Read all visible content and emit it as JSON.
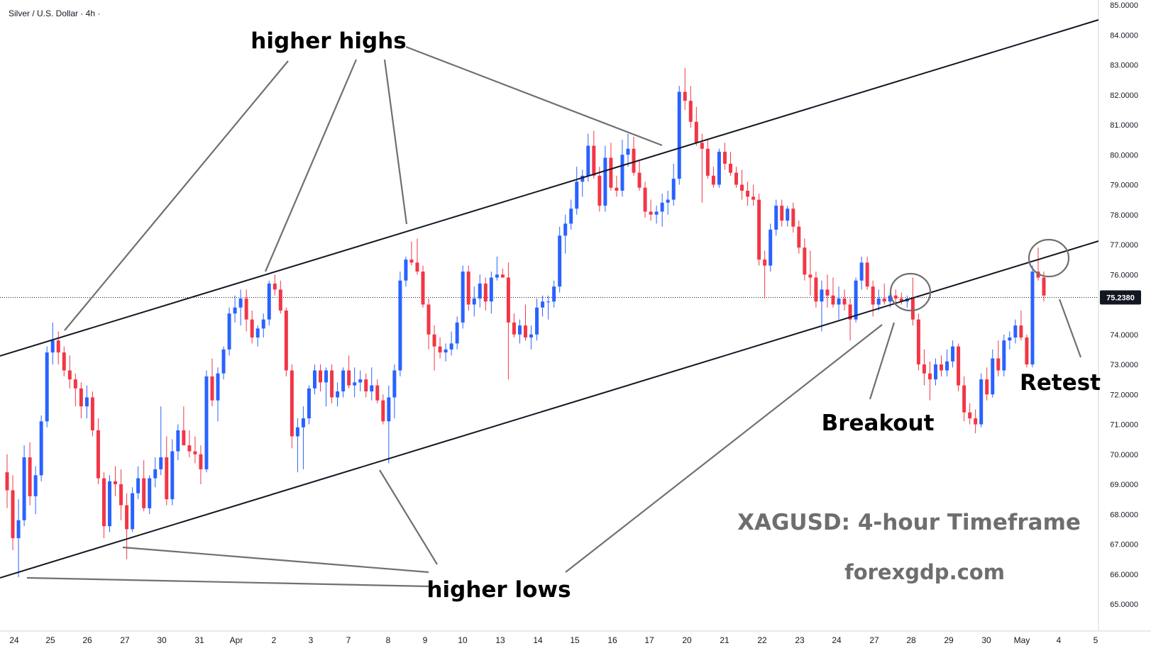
{
  "symbol_title": "Silver / U.S. Dollar · 4h ·",
  "chart_data": {
    "type": "candlestick",
    "title": "XAGUSD: 4-hour Timeframe",
    "watermark": "forexgdp.com",
    "symbol": "Silver / U.S. Dollar",
    "timeframe": "4h",
    "ylim": [
      64.5,
      85.0
    ],
    "y_ticks": [
      "65.0000",
      "66.0000",
      "67.0000",
      "68.0000",
      "69.0000",
      "70.0000",
      "71.0000",
      "72.0000",
      "73.0000",
      "74.0000",
      "75.0000",
      "76.0000",
      "77.0000",
      "78.0000",
      "79.0000",
      "80.0000",
      "81.0000",
      "82.0000",
      "83.0000",
      "84.0000",
      "85.0000"
    ],
    "x_ticks": [
      "24",
      "25",
      "26",
      "27",
      "30",
      "31",
      "Apr",
      "2",
      "3",
      "7",
      "8",
      "9",
      "10",
      "13",
      "14",
      "15",
      "16",
      "17",
      "20",
      "21",
      "22",
      "23",
      "24",
      "27",
      "28",
      "29",
      "30",
      "May",
      "4",
      "5"
    ],
    "current_price": "75.2380",
    "colors": {
      "up": "#2962ff",
      "down": "#f23645",
      "trendline": "#131722",
      "annotation_line": "#707070",
      "price_badge": "#131722"
    },
    "candles": [
      {
        "o": 69.4,
        "h": 70.0,
        "l": 68.2,
        "c": 68.8
      },
      {
        "o": 68.8,
        "h": 69.3,
        "l": 66.8,
        "c": 67.2
      },
      {
        "o": 67.2,
        "h": 68.5,
        "l": 65.9,
        "c": 67.8
      },
      {
        "o": 67.8,
        "h": 70.3,
        "l": 67.6,
        "c": 69.9
      },
      {
        "o": 69.9,
        "h": 70.4,
        "l": 68.3,
        "c": 68.6
      },
      {
        "o": 68.6,
        "h": 69.6,
        "l": 68.0,
        "c": 69.3
      },
      {
        "o": 69.3,
        "h": 71.3,
        "l": 69.1,
        "c": 71.1
      },
      {
        "o": 71.1,
        "h": 73.6,
        "l": 70.9,
        "c": 73.4
      },
      {
        "o": 73.4,
        "h": 74.4,
        "l": 73.0,
        "c": 73.8
      },
      {
        "o": 73.8,
        "h": 74.1,
        "l": 73.0,
        "c": 73.4
      },
      {
        "o": 73.4,
        "h": 73.6,
        "l": 72.6,
        "c": 72.8
      },
      {
        "o": 72.8,
        "h": 73.3,
        "l": 72.2,
        "c": 72.5
      },
      {
        "o": 72.5,
        "h": 72.7,
        "l": 71.6,
        "c": 72.2
      },
      {
        "o": 72.2,
        "h": 72.4,
        "l": 71.2,
        "c": 71.6
      },
      {
        "o": 71.6,
        "h": 72.3,
        "l": 71.2,
        "c": 71.9
      },
      {
        "o": 71.9,
        "h": 72.1,
        "l": 70.6,
        "c": 70.8
      },
      {
        "o": 70.8,
        "h": 71.2,
        "l": 69.0,
        "c": 69.2
      },
      {
        "o": 69.2,
        "h": 69.4,
        "l": 67.2,
        "c": 67.6
      },
      {
        "o": 67.6,
        "h": 69.3,
        "l": 67.4,
        "c": 69.1
      },
      {
        "o": 69.1,
        "h": 69.6,
        "l": 68.6,
        "c": 69.0
      },
      {
        "o": 69.0,
        "h": 69.5,
        "l": 67.8,
        "c": 68.3
      },
      {
        "o": 68.3,
        "h": 68.7,
        "l": 66.5,
        "c": 67.5
      },
      {
        "o": 67.5,
        "h": 68.9,
        "l": 67.4,
        "c": 68.7
      },
      {
        "o": 68.7,
        "h": 69.6,
        "l": 68.5,
        "c": 69.2
      },
      {
        "o": 69.2,
        "h": 69.8,
        "l": 68.1,
        "c": 68.2
      },
      {
        "o": 68.2,
        "h": 69.3,
        "l": 68.0,
        "c": 69.2
      },
      {
        "o": 69.2,
        "h": 69.9,
        "l": 68.9,
        "c": 69.5
      },
      {
        "o": 69.5,
        "h": 71.6,
        "l": 69.3,
        "c": 69.9
      },
      {
        "o": 69.9,
        "h": 70.6,
        "l": 68.3,
        "c": 68.5
      },
      {
        "o": 68.5,
        "h": 70.5,
        "l": 68.3,
        "c": 70.1
      },
      {
        "o": 70.1,
        "h": 71.0,
        "l": 69.8,
        "c": 70.8
      },
      {
        "o": 70.8,
        "h": 71.6,
        "l": 70.3,
        "c": 70.3
      },
      {
        "o": 70.3,
        "h": 70.8,
        "l": 69.9,
        "c": 70.1
      },
      {
        "o": 70.1,
        "h": 70.6,
        "l": 69.7,
        "c": 70.0
      },
      {
        "o": 70.0,
        "h": 70.3,
        "l": 69.0,
        "c": 69.5
      },
      {
        "o": 69.5,
        "h": 72.8,
        "l": 69.4,
        "c": 72.6
      },
      {
        "o": 72.6,
        "h": 73.2,
        "l": 71.6,
        "c": 71.8
      },
      {
        "o": 71.8,
        "h": 72.9,
        "l": 71.1,
        "c": 72.7
      },
      {
        "o": 72.7,
        "h": 73.6,
        "l": 72.5,
        "c": 73.5
      },
      {
        "o": 73.5,
        "h": 74.9,
        "l": 73.3,
        "c": 74.7
      },
      {
        "o": 74.7,
        "h": 75.3,
        "l": 74.4,
        "c": 74.9
      },
      {
        "o": 74.9,
        "h": 75.5,
        "l": 74.3,
        "c": 75.2
      },
      {
        "o": 75.2,
        "h": 75.5,
        "l": 74.1,
        "c": 74.5
      },
      {
        "o": 74.5,
        "h": 74.8,
        "l": 73.7,
        "c": 73.9
      },
      {
        "o": 73.9,
        "h": 74.3,
        "l": 73.6,
        "c": 74.2
      },
      {
        "o": 74.2,
        "h": 74.7,
        "l": 73.9,
        "c": 74.5
      },
      {
        "o": 74.5,
        "h": 75.8,
        "l": 74.3,
        "c": 75.7
      },
      {
        "o": 75.7,
        "h": 76.0,
        "l": 75.3,
        "c": 75.5
      },
      {
        "o": 75.5,
        "h": 75.8,
        "l": 74.7,
        "c": 74.8
      },
      {
        "o": 74.8,
        "h": 74.9,
        "l": 72.6,
        "c": 72.8
      },
      {
        "o": 72.8,
        "h": 73.0,
        "l": 70.2,
        "c": 70.6
      },
      {
        "o": 70.6,
        "h": 71.2,
        "l": 69.4,
        "c": 70.9
      },
      {
        "o": 70.9,
        "h": 71.6,
        "l": 69.5,
        "c": 71.2
      },
      {
        "o": 71.2,
        "h": 72.3,
        "l": 71.0,
        "c": 72.2
      },
      {
        "o": 72.2,
        "h": 73.0,
        "l": 72.0,
        "c": 72.8
      },
      {
        "o": 72.8,
        "h": 73.0,
        "l": 72.1,
        "c": 72.4
      },
      {
        "o": 72.4,
        "h": 72.9,
        "l": 71.6,
        "c": 72.8
      },
      {
        "o": 72.8,
        "h": 73.0,
        "l": 71.7,
        "c": 71.9
      },
      {
        "o": 71.9,
        "h": 72.4,
        "l": 71.6,
        "c": 72.1
      },
      {
        "o": 72.1,
        "h": 72.9,
        "l": 71.9,
        "c": 72.8
      },
      {
        "o": 72.8,
        "h": 73.3,
        "l": 72.2,
        "c": 72.3
      },
      {
        "o": 72.3,
        "h": 72.9,
        "l": 71.9,
        "c": 72.4
      },
      {
        "o": 72.4,
        "h": 72.8,
        "l": 72.1,
        "c": 72.5
      },
      {
        "o": 72.5,
        "h": 72.7,
        "l": 71.9,
        "c": 72.1
      },
      {
        "o": 72.1,
        "h": 72.9,
        "l": 71.8,
        "c": 72.3
      },
      {
        "o": 72.3,
        "h": 72.5,
        "l": 71.7,
        "c": 71.8
      },
      {
        "o": 71.8,
        "h": 72.0,
        "l": 71.0,
        "c": 71.1
      },
      {
        "o": 71.1,
        "h": 72.3,
        "l": 69.7,
        "c": 71.9
      },
      {
        "o": 71.9,
        "h": 73.0,
        "l": 71.2,
        "c": 72.8
      },
      {
        "o": 72.8,
        "h": 76.1,
        "l": 72.6,
        "c": 75.8
      },
      {
        "o": 75.8,
        "h": 76.6,
        "l": 75.6,
        "c": 76.5
      },
      {
        "o": 76.5,
        "h": 77.1,
        "l": 76.3,
        "c": 76.4
      },
      {
        "o": 76.4,
        "h": 77.2,
        "l": 76.0,
        "c": 76.1
      },
      {
        "o": 76.1,
        "h": 76.3,
        "l": 74.9,
        "c": 75.0
      },
      {
        "o": 75.0,
        "h": 75.2,
        "l": 73.5,
        "c": 74.0
      },
      {
        "o": 74.0,
        "h": 74.3,
        "l": 72.8,
        "c": 73.6
      },
      {
        "o": 73.6,
        "h": 73.9,
        "l": 73.2,
        "c": 73.4
      },
      {
        "o": 73.4,
        "h": 73.7,
        "l": 73.1,
        "c": 73.5
      },
      {
        "o": 73.5,
        "h": 74.1,
        "l": 73.3,
        "c": 73.7
      },
      {
        "o": 73.7,
        "h": 74.6,
        "l": 73.5,
        "c": 74.4
      },
      {
        "o": 74.4,
        "h": 76.3,
        "l": 74.2,
        "c": 76.1
      },
      {
        "o": 76.1,
        "h": 76.3,
        "l": 74.8,
        "c": 75.0
      },
      {
        "o": 75.0,
        "h": 75.6,
        "l": 74.6,
        "c": 75.2
      },
      {
        "o": 75.2,
        "h": 76.0,
        "l": 74.9,
        "c": 75.7
      },
      {
        "o": 75.7,
        "h": 75.9,
        "l": 74.8,
        "c": 75.1
      },
      {
        "o": 75.1,
        "h": 76.1,
        "l": 74.7,
        "c": 75.9
      },
      {
        "o": 75.9,
        "h": 76.6,
        "l": 75.8,
        "c": 76.0
      },
      {
        "o": 76.0,
        "h": 76.2,
        "l": 75.9,
        "c": 75.9
      },
      {
        "o": 75.9,
        "h": 76.4,
        "l": 72.5,
        "c": 74.4
      },
      {
        "o": 74.4,
        "h": 74.7,
        "l": 73.9,
        "c": 74.0
      },
      {
        "o": 74.0,
        "h": 74.5,
        "l": 73.7,
        "c": 74.3
      },
      {
        "o": 74.3,
        "h": 75.0,
        "l": 73.8,
        "c": 73.9
      },
      {
        "o": 73.9,
        "h": 74.3,
        "l": 73.5,
        "c": 74.0
      },
      {
        "o": 74.0,
        "h": 75.2,
        "l": 73.8,
        "c": 74.9
      },
      {
        "o": 74.9,
        "h": 75.3,
        "l": 74.6,
        "c": 75.1
      },
      {
        "o": 75.1,
        "h": 75.3,
        "l": 74.5,
        "c": 75.1
      },
      {
        "o": 75.1,
        "h": 75.8,
        "l": 74.9,
        "c": 75.6
      },
      {
        "o": 75.6,
        "h": 77.6,
        "l": 75.4,
        "c": 77.3
      },
      {
        "o": 77.3,
        "h": 78.0,
        "l": 76.7,
        "c": 77.7
      },
      {
        "o": 77.7,
        "h": 78.5,
        "l": 77.5,
        "c": 78.2
      },
      {
        "o": 78.2,
        "h": 79.6,
        "l": 78.0,
        "c": 79.1
      },
      {
        "o": 79.1,
        "h": 79.5,
        "l": 78.6,
        "c": 79.3
      },
      {
        "o": 79.3,
        "h": 80.7,
        "l": 79.1,
        "c": 80.3
      },
      {
        "o": 80.3,
        "h": 80.8,
        "l": 79.2,
        "c": 79.3
      },
      {
        "o": 79.3,
        "h": 79.6,
        "l": 78.1,
        "c": 78.3
      },
      {
        "o": 78.3,
        "h": 80.3,
        "l": 78.1,
        "c": 79.9
      },
      {
        "o": 79.9,
        "h": 80.4,
        "l": 78.8,
        "c": 78.9
      },
      {
        "o": 78.9,
        "h": 79.3,
        "l": 78.6,
        "c": 78.8
      },
      {
        "o": 78.8,
        "h": 80.5,
        "l": 78.6,
        "c": 80.0
      },
      {
        "o": 80.0,
        "h": 80.7,
        "l": 79.6,
        "c": 80.2
      },
      {
        "o": 80.2,
        "h": 80.6,
        "l": 79.3,
        "c": 79.4
      },
      {
        "o": 79.4,
        "h": 79.8,
        "l": 78.8,
        "c": 78.9
      },
      {
        "o": 78.9,
        "h": 79.1,
        "l": 77.9,
        "c": 78.1
      },
      {
        "o": 78.1,
        "h": 78.5,
        "l": 77.8,
        "c": 78.0
      },
      {
        "o": 78.0,
        "h": 78.3,
        "l": 77.7,
        "c": 78.1
      },
      {
        "o": 78.1,
        "h": 78.7,
        "l": 77.6,
        "c": 78.4
      },
      {
        "o": 78.4,
        "h": 78.8,
        "l": 78.0,
        "c": 78.5
      },
      {
        "o": 78.5,
        "h": 79.7,
        "l": 78.3,
        "c": 79.2
      },
      {
        "o": 79.2,
        "h": 82.3,
        "l": 79.0,
        "c": 82.1
      },
      {
        "o": 82.1,
        "h": 82.9,
        "l": 81.5,
        "c": 81.8
      },
      {
        "o": 81.8,
        "h": 82.3,
        "l": 80.9,
        "c": 81.1
      },
      {
        "o": 81.1,
        "h": 81.6,
        "l": 80.3,
        "c": 80.4
      },
      {
        "o": 80.4,
        "h": 80.7,
        "l": 78.4,
        "c": 80.2
      },
      {
        "o": 80.2,
        "h": 80.5,
        "l": 79.2,
        "c": 79.3
      },
      {
        "o": 79.3,
        "h": 79.6,
        "l": 78.9,
        "c": 79.0
      },
      {
        "o": 79.0,
        "h": 80.2,
        "l": 78.9,
        "c": 80.1
      },
      {
        "o": 80.1,
        "h": 80.4,
        "l": 79.5,
        "c": 79.7
      },
      {
        "o": 79.7,
        "h": 80.1,
        "l": 79.3,
        "c": 79.4
      },
      {
        "o": 79.4,
        "h": 79.6,
        "l": 78.9,
        "c": 79.0
      },
      {
        "o": 79.0,
        "h": 79.5,
        "l": 78.5,
        "c": 78.8
      },
      {
        "o": 78.8,
        "h": 79.1,
        "l": 78.3,
        "c": 78.6
      },
      {
        "o": 78.6,
        "h": 79.0,
        "l": 78.3,
        "c": 78.5
      },
      {
        "o": 78.5,
        "h": 78.7,
        "l": 76.3,
        "c": 76.5
      },
      {
        "o": 76.5,
        "h": 76.8,
        "l": 75.2,
        "c": 76.3
      },
      {
        "o": 76.3,
        "h": 77.7,
        "l": 76.1,
        "c": 77.5
      },
      {
        "o": 77.5,
        "h": 78.5,
        "l": 77.3,
        "c": 78.3
      },
      {
        "o": 78.3,
        "h": 78.5,
        "l": 77.6,
        "c": 77.8
      },
      {
        "o": 77.8,
        "h": 78.3,
        "l": 77.6,
        "c": 78.2
      },
      {
        "o": 78.2,
        "h": 78.4,
        "l": 77.4,
        "c": 77.6
      },
      {
        "o": 77.6,
        "h": 77.8,
        "l": 76.7,
        "c": 76.9
      },
      {
        "o": 76.9,
        "h": 77.2,
        "l": 75.8,
        "c": 76.0
      },
      {
        "o": 76.0,
        "h": 76.8,
        "l": 75.3,
        "c": 75.9
      },
      {
        "o": 75.9,
        "h": 76.1,
        "l": 74.9,
        "c": 75.1
      },
      {
        "o": 75.1,
        "h": 75.8,
        "l": 74.1,
        "c": 75.5
      },
      {
        "o": 75.5,
        "h": 76.0,
        "l": 74.9,
        "c": 75.3
      },
      {
        "o": 75.3,
        "h": 75.9,
        "l": 74.9,
        "c": 75.0
      },
      {
        "o": 75.0,
        "h": 75.6,
        "l": 74.5,
        "c": 75.2
      },
      {
        "o": 75.2,
        "h": 75.5,
        "l": 74.8,
        "c": 75.0
      },
      {
        "o": 75.0,
        "h": 75.2,
        "l": 73.8,
        "c": 74.5
      },
      {
        "o": 74.5,
        "h": 75.9,
        "l": 74.4,
        "c": 75.8
      },
      {
        "o": 75.8,
        "h": 76.6,
        "l": 75.5,
        "c": 76.4
      },
      {
        "o": 76.4,
        "h": 76.6,
        "l": 75.5,
        "c": 75.6
      },
      {
        "o": 75.6,
        "h": 75.8,
        "l": 74.6,
        "c": 75.0
      },
      {
        "o": 75.0,
        "h": 75.5,
        "l": 74.8,
        "c": 75.2
      },
      {
        "o": 75.2,
        "h": 75.7,
        "l": 75.0,
        "c": 75.1
      },
      {
        "o": 75.1,
        "h": 75.4,
        "l": 74.9,
        "c": 75.3
      },
      {
        "o": 75.3,
        "h": 75.5,
        "l": 75.0,
        "c": 75.2
      },
      {
        "o": 75.2,
        "h": 75.4,
        "l": 75.0,
        "c": 75.1
      },
      {
        "o": 75.1,
        "h": 75.3,
        "l": 74.9,
        "c": 75.2
      },
      {
        "o": 75.2,
        "h": 75.9,
        "l": 74.3,
        "c": 74.5
      },
      {
        "o": 74.5,
        "h": 74.7,
        "l": 72.8,
        "c": 73.0
      },
      {
        "o": 73.0,
        "h": 73.5,
        "l": 72.3,
        "c": 72.7
      },
      {
        "o": 72.7,
        "h": 73.1,
        "l": 71.8,
        "c": 72.5
      },
      {
        "o": 72.5,
        "h": 73.2,
        "l": 72.3,
        "c": 73.0
      },
      {
        "o": 73.0,
        "h": 73.3,
        "l": 72.6,
        "c": 72.8
      },
      {
        "o": 72.8,
        "h": 73.5,
        "l": 72.6,
        "c": 73.1
      },
      {
        "o": 73.1,
        "h": 73.8,
        "l": 72.9,
        "c": 73.6
      },
      {
        "o": 73.6,
        "h": 73.7,
        "l": 72.1,
        "c": 72.3
      },
      {
        "o": 72.3,
        "h": 72.6,
        "l": 71.1,
        "c": 71.4
      },
      {
        "o": 71.4,
        "h": 71.7,
        "l": 71.0,
        "c": 71.2
      },
      {
        "o": 71.2,
        "h": 71.5,
        "l": 70.7,
        "c": 71.0
      },
      {
        "o": 71.0,
        "h": 72.7,
        "l": 70.9,
        "c": 72.5
      },
      {
        "o": 72.5,
        "h": 72.9,
        "l": 71.8,
        "c": 72.0
      },
      {
        "o": 72.0,
        "h": 73.5,
        "l": 71.9,
        "c": 73.2
      },
      {
        "o": 73.2,
        "h": 73.8,
        "l": 72.6,
        "c": 72.8
      },
      {
        "o": 72.8,
        "h": 74.0,
        "l": 72.6,
        "c": 73.8
      },
      {
        "o": 73.8,
        "h": 74.1,
        "l": 73.5,
        "c": 73.9
      },
      {
        "o": 73.9,
        "h": 74.5,
        "l": 73.7,
        "c": 74.3
      },
      {
        "o": 74.3,
        "h": 74.8,
        "l": 73.8,
        "c": 73.9
      },
      {
        "o": 73.9,
        "h": 74.0,
        "l": 72.9,
        "c": 73.0
      },
      {
        "o": 73.0,
        "h": 76.3,
        "l": 72.9,
        "c": 76.1
      },
      {
        "o": 76.1,
        "h": 76.9,
        "l": 75.8,
        "c": 75.9
      },
      {
        "o": 75.9,
        "h": 76.1,
        "l": 75.1,
        "c": 75.3
      }
    ]
  },
  "annotations": {
    "higher_highs": "higher highs",
    "higher_lows": "higher lows",
    "breakout": "Breakout",
    "retest": "Retest"
  }
}
